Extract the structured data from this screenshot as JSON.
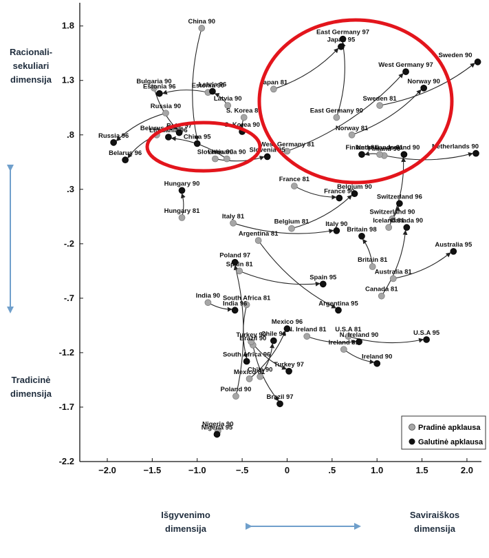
{
  "side_labels": {
    "top": [
      "Racionali-",
      "sekuliari",
      "dimensija"
    ],
    "bottom": [
      "Tradicinė",
      "dimensija"
    ],
    "x_left": [
      "Išgyvenimo",
      "dimensija"
    ],
    "x_right": [
      "Saviraiškos",
      "dimensija"
    ]
  },
  "colors": {
    "initial": "#a6a6a6",
    "final": "#111111",
    "highlight_circle": "#e3151c",
    "side_arrow": "#6f9fcb"
  },
  "chart_data": {
    "type": "scatter",
    "title": "",
    "xlabel": "",
    "ylabel": "",
    "xlim": [
      -2.0,
      2.1
    ],
    "ylim": [
      -2.2,
      1.95
    ],
    "x_ticks": [
      "−2.0",
      "−1.5",
      "−1.0",
      "−.5",
      "0",
      ".5",
      "1.0",
      "1.5",
      "2.0"
    ],
    "x_tick_values": [
      -2.0,
      -1.5,
      -1.0,
      -0.5,
      0,
      0.5,
      1.0,
      1.5,
      2.0
    ],
    "y_ticks": [
      "1.8",
      "1.3",
      ".8",
      ".3",
      "-.2",
      "-.7",
      "-1.2",
      "-1.7",
      "-2.2"
    ],
    "y_tick_values": [
      1.8,
      1.3,
      0.8,
      0.3,
      -0.2,
      -0.7,
      -1.2,
      -1.7,
      -2.2
    ],
    "legend": {
      "position": "bottom-right",
      "initial": "Pradinė apklausa",
      "final": "Galutinė apklausa"
    },
    "trajectories": [
      {
        "from": {
          "label": "China 90",
          "x": -0.95,
          "y": 1.78
        },
        "to": {
          "label": "China 95",
          "x": -1.0,
          "y": 0.72
        }
      },
      {
        "from": {
          "label": "Estonia 90",
          "x": -0.88,
          "y": 1.19
        },
        "to": {
          "label": "Estonia 96",
          "x": -1.42,
          "y": 1.18
        }
      },
      {
        "from": {
          "label": "Latvia 90",
          "x": -0.66,
          "y": 1.07
        },
        "to": {
          "label": "Latvia 96",
          "x": -0.83,
          "y": 1.2
        }
      },
      {
        "from": {
          "label": "Bulgaria 90",
          "x": -1.48,
          "y": 1.23
        },
        "to": {
          "label": "Bulg. 97",
          "x": -1.2,
          "y": 0.82
        }
      },
      {
        "from": {
          "label": "Russia 90",
          "x": -1.35,
          "y": 1.0
        },
        "to": {
          "label": "Russia 96",
          "x": -1.93,
          "y": 0.73
        }
      },
      {
        "from": {
          "label": "Belarus 90",
          "x": -1.45,
          "y": 0.8
        },
        "to": {
          "label": "Belarus 96",
          "x": -1.8,
          "y": 0.57
        }
      },
      {
        "from": {
          "label": "Lithuania 90",
          "x": -0.67,
          "y": 0.58
        },
        "to": {
          "label": "Lithuania 96",
          "x": -1.32,
          "y": 0.78
        }
      },
      {
        "from": {
          "label": "Slovenia 90",
          "x": -0.8,
          "y": 0.58
        },
        "to": {
          "label": "Slovenia 95",
          "x": -0.22,
          "y": 0.6
        }
      },
      {
        "from": {
          "label": "S. Korea 81",
          "x": -0.48,
          "y": 0.96
        },
        "to": {
          "label": "S. Korea 90",
          "x": -0.5,
          "y": 0.83
        }
      },
      {
        "from": {
          "label": "Japan 81",
          "x": -0.15,
          "y": 1.22
        },
        "to": {
          "label": "Japan 95",
          "x": 0.6,
          "y": 1.61
        }
      },
      {
        "from": {
          "label": "East Germany 90",
          "x": 0.55,
          "y": 0.96
        },
        "to": {
          "label": "East Germany 97",
          "x": 0.62,
          "y": 1.68
        }
      },
      {
        "from": {
          "label": "West Germany 81",
          "x": 0.0,
          "y": 0.65
        },
        "to": {
          "label": "West Germany 97",
          "x": 1.32,
          "y": 1.38
        }
      },
      {
        "from": {
          "label": "Norway 81",
          "x": 0.72,
          "y": 0.8
        },
        "to": {
          "label": "Norway 90",
          "x": 1.52,
          "y": 1.23
        }
      },
      {
        "from": {
          "label": "Sweden 81",
          "x": 1.03,
          "y": 1.07
        },
        "to": {
          "label": "Sweden 90",
          "x": 2.12,
          "y": 1.47
        }
      },
      {
        "from": {
          "label": "Finland 90",
          "x": 1.08,
          "y": 0.61
        },
        "to": {
          "label": "Finland 81",
          "x": 0.83,
          "y": 0.62
        }
      },
      {
        "from": {
          "label": "Netherlands 81",
          "x": 1.03,
          "y": 0.62
        },
        "to": {
          "label": "Netherlands 90",
          "x": 2.1,
          "y": 0.63
        }
      },
      {
        "from": {
          "label": "Iceland 81",
          "x": 1.13,
          "y": -0.05
        },
        "to": {
          "label": "Iceland 90",
          "x": 1.3,
          "y": 0.62
        }
      },
      {
        "from": {
          "label": "Switzerland 90",
          "x": 1.17,
          "y": 0.03
        },
        "to": {
          "label": "Switzerland 96",
          "x": 1.25,
          "y": 0.17
        }
      },
      {
        "from": {
          "label": "France 81",
          "x": 0.08,
          "y": 0.33
        },
        "to": {
          "label": "France 90",
          "x": 0.58,
          "y": 0.22
        }
      },
      {
        "from": {
          "label": "Belgium 81",
          "x": 0.05,
          "y": -0.06
        },
        "to": {
          "label": "Belgium 90",
          "x": 0.75,
          "y": 0.26
        }
      },
      {
        "from": {
          "label": "Italy 81",
          "x": -0.6,
          "y": -0.01
        },
        "to": {
          "label": "Italy 90",
          "x": 0.55,
          "y": -0.08
        }
      },
      {
        "from": {
          "label": "Britain 81",
          "x": 0.95,
          "y": -0.41
        },
        "to": {
          "label": "Britain 98",
          "x": 0.83,
          "y": -0.13
        }
      },
      {
        "from": {
          "label": "Canada 81",
          "x": 1.05,
          "y": -0.68
        },
        "to": {
          "label": "Canada 90",
          "x": 1.33,
          "y": -0.05
        }
      },
      {
        "from": {
          "label": "Australia 81",
          "x": 1.18,
          "y": -0.52
        },
        "to": {
          "label": "Australia 95",
          "x": 1.85,
          "y": -0.27
        }
      },
      {
        "from": {
          "label": "Hungary 81",
          "x": -1.17,
          "y": 0.04
        },
        "to": {
          "label": "Hungary 90",
          "x": -1.17,
          "y": 0.29
        }
      },
      {
        "from": {
          "label": "Argentina 81",
          "x": -0.32,
          "y": -0.17
        },
        "to": {
          "label": "Argentina 95",
          "x": 0.57,
          "y": -0.81
        }
      },
      {
        "from": {
          "label": "Spain 81",
          "x": -0.53,
          "y": -0.45
        },
        "to": {
          "label": "Spain 95",
          "x": 0.4,
          "y": -0.57
        }
      },
      {
        "from": {
          "label": "Poland 90",
          "x": -0.57,
          "y": -1.6
        },
        "to": {
          "label": "Poland 97",
          "x": -0.58,
          "y": -0.37
        }
      },
      {
        "from": {
          "label": "India 90",
          "x": -0.88,
          "y": -0.74
        },
        "to": {
          "label": "India 96",
          "x": -0.58,
          "y": -0.81
        }
      },
      {
        "from": {
          "label": "South Africa 81",
          "x": -0.45,
          "y": -0.76
        },
        "to": {
          "label": "South Africa 96",
          "x": -0.45,
          "y": -1.28
        }
      },
      {
        "from": {
          "label": "Brazil 90",
          "x": -0.38,
          "y": -1.13
        },
        "to": {
          "label": "Brazil 97",
          "x": -0.08,
          "y": -1.67
        }
      },
      {
        "from": {
          "label": "Mexico 81",
          "x": -0.42,
          "y": -1.44
        },
        "to": {
          "label": "Mexico 96",
          "x": 0.0,
          "y": -0.98
        }
      },
      {
        "from": {
          "label": "Chile 90",
          "x": -0.3,
          "y": -1.42
        },
        "to": {
          "label": "Chile 96",
          "x": -0.15,
          "y": -1.09
        }
      },
      {
        "from": {
          "label": "Turkey 90",
          "x": -0.4,
          "y": -1.1
        },
        "to": {
          "label": "Turkey 97",
          "x": 0.02,
          "y": -1.37
        }
      },
      {
        "from": {
          "label": "N. Ireland 81",
          "x": 0.22,
          "y": -1.05
        },
        "to": {
          "label": "N. Ireland 90",
          "x": 0.8,
          "y": -1.1
        }
      },
      {
        "from": {
          "label": "U.S.A 81",
          "x": 0.68,
          "y": -1.05
        },
        "to": {
          "label": "U.S.A 95",
          "x": 1.55,
          "y": -1.08
        }
      },
      {
        "from": {
          "label": "Ireland 81",
          "x": 0.63,
          "y": -1.17
        },
        "to": {
          "label": "Ireland 90",
          "x": 1.0,
          "y": -1.3
        }
      }
    ],
    "standalone": [
      {
        "label": "Nigeria 90",
        "x": -0.77,
        "y": -1.92,
        "kind": "initial"
      },
      {
        "label": "Nigeria 95",
        "x": -0.78,
        "y": -1.95,
        "kind": "final"
      }
    ]
  }
}
